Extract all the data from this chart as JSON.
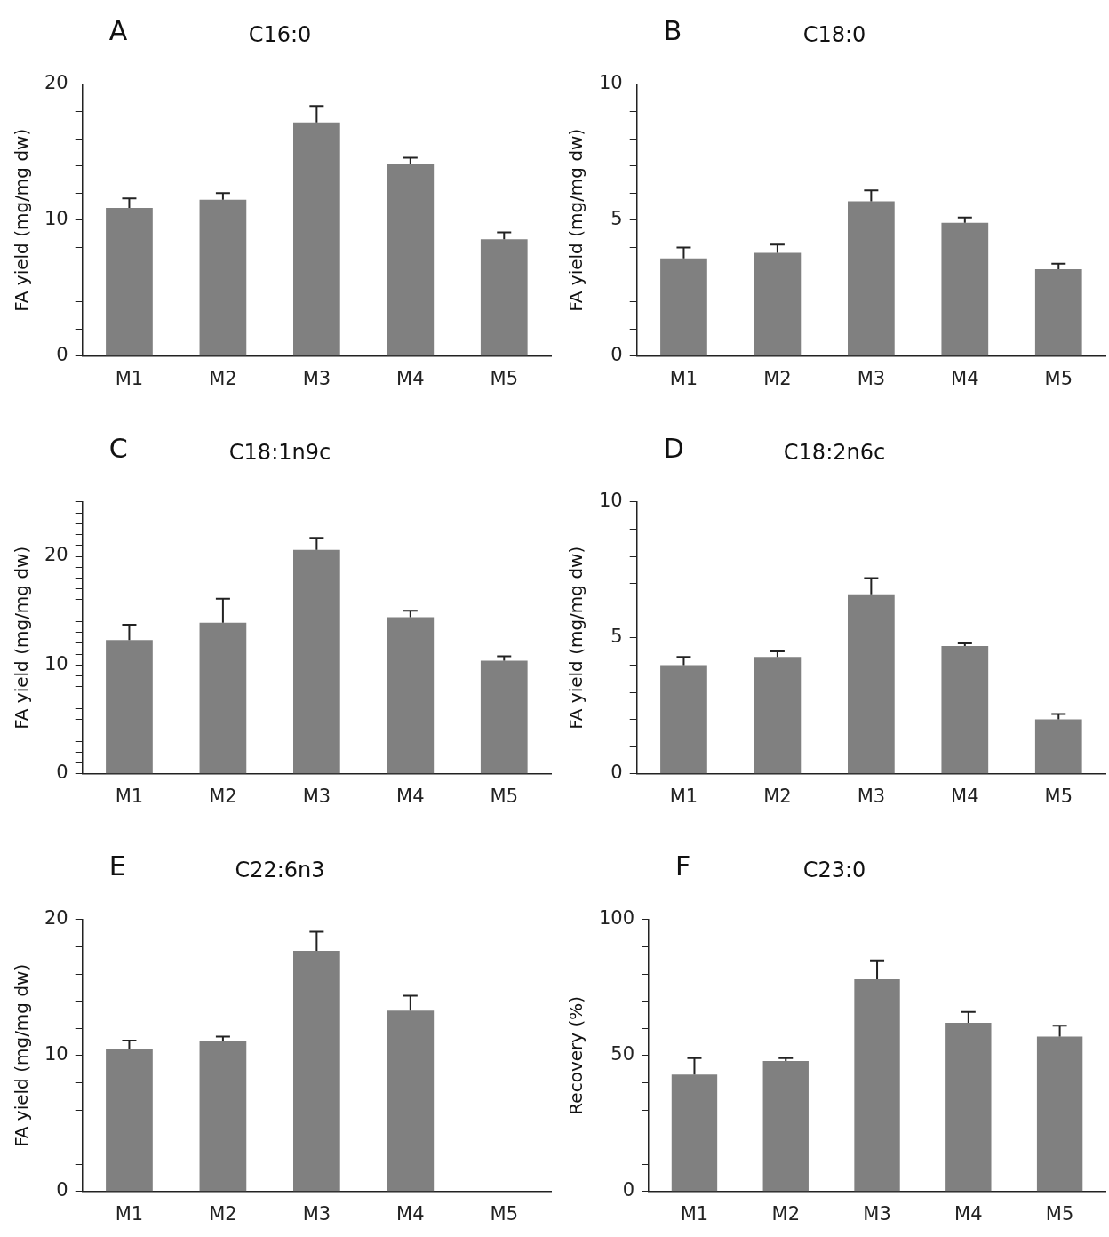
{
  "chart_data": [
    {
      "type": "bar",
      "title": "C16:0",
      "ylabel": "FA yield (mg/mg dw)",
      "annotations": [
        "A"
      ],
      "categories": [
        "M1",
        "M2",
        "M3",
        "M4",
        "M5"
      ],
      "color": "#808080",
      "values": [
        10.9,
        11.5,
        17.2,
        14.1,
        8.6
      ],
      "errors": [
        [
          10.9,
          11.6
        ],
        [
          11.5,
          12.0
        ],
        [
          17.2,
          18.4
        ],
        [
          14.1,
          14.6
        ],
        [
          8.6,
          9.1
        ]
      ],
      "ylim": [
        0,
        20
      ],
      "yticks": [
        0,
        {
          "value": 2,
          "label": null
        },
        {
          "value": 4,
          "label": null
        },
        {
          "value": 6,
          "label": null
        },
        {
          "value": 8,
          "label": null
        },
        10,
        {
          "value": 12,
          "label": null
        },
        {
          "value": 14,
          "label": null
        },
        {
          "value": 16,
          "label": null
        },
        {
          "value": 18,
          "label": null
        },
        20
      ],
      "grid": false,
      "legend": false
    },
    {
      "type": "bar",
      "title": "C18:0",
      "ylabel": "FA yield (mg/mg dw)",
      "annotations": [
        "B"
      ],
      "categories": [
        "M1",
        "M2",
        "M3",
        "M4",
        "M5"
      ],
      "color": "#808080",
      "values": [
        3.6,
        3.8,
        5.7,
        4.9,
        3.2
      ],
      "errors": [
        [
          3.6,
          4.0
        ],
        [
          3.8,
          4.1
        ],
        [
          5.7,
          6.1
        ],
        [
          4.9,
          5.1
        ],
        [
          3.2,
          3.4
        ]
      ],
      "ylim": [
        0,
        10
      ],
      "yticks": [
        0,
        {
          "value": 1,
          "label": null
        },
        {
          "value": 2,
          "label": null
        },
        {
          "value": 3,
          "label": null
        },
        {
          "value": 4,
          "label": null
        },
        5,
        {
          "value": 6,
          "label": null
        },
        {
          "value": 7,
          "label": null
        },
        {
          "value": 8,
          "label": null
        },
        {
          "value": 9,
          "label": null
        },
        10
      ],
      "grid": false,
      "legend": false
    },
    {
      "type": "bar",
      "title": "C18:1n9c",
      "ylabel": "FA yield (mg/mg dw)",
      "annotations": [
        "C"
      ],
      "categories": [
        "M1",
        "M2",
        "M3",
        "M4",
        "M5"
      ],
      "color": "#808080",
      "values": [
        12.3,
        13.9,
        20.6,
        14.4,
        10.4
      ],
      "errors": [
        [
          12.3,
          13.7
        ],
        [
          13.9,
          16.1
        ],
        [
          20.6,
          21.7
        ],
        [
          14.4,
          15.0
        ],
        [
          10.4,
          10.8
        ]
      ],
      "ylim": [
        0,
        25
      ],
      "yticks": [
        0,
        {
          "value": 1,
          "label": null
        },
        {
          "value": 2,
          "label": null
        },
        {
          "value": 3,
          "label": null
        },
        {
          "value": 4,
          "label": null
        },
        {
          "value": 5,
          "label": null
        },
        {
          "value": 6,
          "label": null
        },
        {
          "value": 7,
          "label": null
        },
        {
          "value": 8,
          "label": null
        },
        {
          "value": 9,
          "label": null
        },
        10,
        {
          "value": 11,
          "label": null
        },
        {
          "value": 12,
          "label": null
        },
        {
          "value": 13,
          "label": null
        },
        {
          "value": 14,
          "label": null
        },
        {
          "value": 15,
          "label": null
        },
        {
          "value": 16,
          "label": null
        },
        {
          "value": 17,
          "label": null
        },
        {
          "value": 18,
          "label": null
        },
        {
          "value": 19,
          "label": null
        },
        20,
        {
          "value": 21,
          "label": null
        },
        {
          "value": 22,
          "label": null
        },
        {
          "value": 23,
          "label": null
        },
        {
          "value": 24,
          "label": null
        },
        {
          "value": 25,
          "label": null
        }
      ],
      "grid": false,
      "legend": false
    },
    {
      "type": "bar",
      "title": "C18:2n6c",
      "ylabel": "FA yield (mg/mg dw)",
      "annotations": [
        "D"
      ],
      "categories": [
        "M1",
        "M2",
        "M3",
        "M4",
        "M5"
      ],
      "color": "#808080",
      "values": [
        4.0,
        4.3,
        6.6,
        4.7,
        2.0
      ],
      "errors": [
        [
          4.0,
          4.3
        ],
        [
          4.3,
          4.5
        ],
        [
          6.6,
          7.2
        ],
        [
          4.7,
          4.8
        ],
        [
          2.0,
          2.2
        ]
      ],
      "ylim": [
        0,
        10
      ],
      "yticks": [
        0,
        {
          "value": 1,
          "label": null
        },
        {
          "value": 2,
          "label": null
        },
        {
          "value": 3,
          "label": null
        },
        {
          "value": 4,
          "label": null
        },
        5,
        {
          "value": 6,
          "label": null
        },
        {
          "value": 7,
          "label": null
        },
        {
          "value": 8,
          "label": null
        },
        {
          "value": 9,
          "label": null
        },
        10
      ],
      "grid": false,
      "legend": false
    },
    {
      "type": "bar",
      "title": "C22:6n3",
      "ylabel": "FA yield (mg/mg dw)",
      "annotations": [
        "E"
      ],
      "categories": [
        "M1",
        "M2",
        "M3",
        "M4",
        "M5"
      ],
      "color": "#808080",
      "values": [
        10.5,
        11.1,
        17.7,
        13.3,
        null
      ],
      "errors": [
        [
          10.5,
          11.1
        ],
        [
          11.1,
          11.4
        ],
        [
          17.7,
          19.1
        ],
        [
          13.3,
          14.4
        ],
        null
      ],
      "ylim": [
        0,
        20
      ],
      "yticks": [
        0,
        {
          "value": 2,
          "label": null
        },
        {
          "value": 4,
          "label": null
        },
        {
          "value": 6,
          "label": null
        },
        {
          "value": 8,
          "label": null
        },
        10,
        {
          "value": 12,
          "label": null
        },
        {
          "value": 14,
          "label": null
        },
        {
          "value": 16,
          "label": null
        },
        {
          "value": 18,
          "label": null
        },
        20
      ],
      "grid": false,
      "legend": false
    },
    {
      "type": "bar",
      "title": "C23:0",
      "ylabel": "Recovery (%)",
      "annotations": [
        "F"
      ],
      "categories": [
        "M1",
        "M2",
        "M3",
        "M4",
        "M5"
      ],
      "color": "#808080",
      "values": [
        43,
        48,
        78,
        62,
        57
      ],
      "errors": [
        [
          43,
          49
        ],
        [
          48,
          49
        ],
        [
          78,
          85
        ],
        [
          62,
          66
        ],
        [
          57,
          61
        ]
      ],
      "ylim": [
        0,
        100
      ],
      "yticks": [
        0,
        {
          "value": 10,
          "label": null
        },
        {
          "value": 20,
          "label": null
        },
        {
          "value": 30,
          "label": null
        },
        {
          "value": 40,
          "label": null
        },
        50,
        {
          "value": 60,
          "label": null
        },
        {
          "value": 70,
          "label": null
        },
        {
          "value": 80,
          "label": null
        },
        {
          "value": 90,
          "label": null
        },
        100
      ],
      "grid": false,
      "legend": false
    }
  ]
}
